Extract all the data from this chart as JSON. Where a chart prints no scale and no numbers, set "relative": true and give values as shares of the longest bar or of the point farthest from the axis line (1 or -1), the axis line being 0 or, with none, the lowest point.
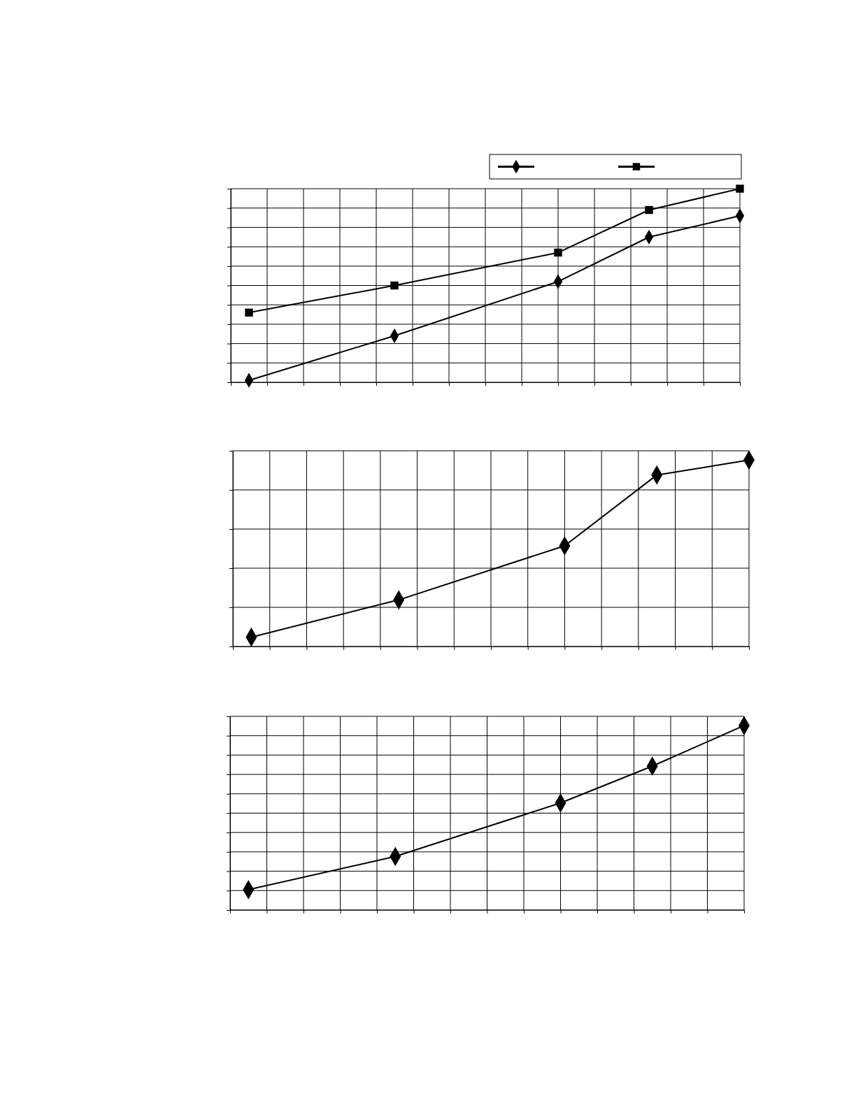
{
  "chart_data": [
    {
      "type": "line",
      "relative": true,
      "grid": true,
      "categories": [
        null,
        null,
        null,
        null,
        null,
        null,
        null,
        null,
        null,
        null,
        null,
        null,
        null,
        null,
        null,
        null,
        null,
        null,
        null,
        null,
        null,
        null,
        null,
        null,
        null,
        null,
        null,
        null,
        null
      ],
      "series": [
        {
          "color": "#000000",
          "marker": "diamond",
          "values": [
            null,
            0.01,
            null,
            null,
            null,
            null,
            null,
            null,
            null,
            0.24,
            null,
            null,
            null,
            null,
            null,
            null,
            null,
            null,
            0.52,
            null,
            null,
            null,
            null,
            0.75,
            null,
            null,
            null,
            null,
            0.86
          ]
        },
        {
          "color": "#000000",
          "marker": "square",
          "values": [
            null,
            0.36,
            null,
            null,
            null,
            null,
            null,
            null,
            null,
            0.5,
            null,
            null,
            null,
            null,
            null,
            null,
            null,
            null,
            0.67,
            null,
            null,
            null,
            null,
            0.89,
            null,
            null,
            null,
            null,
            1.0
          ]
        }
      ]
    },
    {
      "type": "line",
      "relative": true,
      "grid": true,
      "categories": [
        null,
        null,
        null,
        null,
        null,
        null,
        null,
        null,
        null,
        null,
        null,
        null,
        null,
        null,
        null,
        null,
        null,
        null,
        null,
        null,
        null,
        null,
        null,
        null,
        null,
        null,
        null,
        null,
        null
      ],
      "series": [
        {
          "color": "#000000",
          "marker": "diamond",
          "values": [
            null,
            0.05,
            null,
            null,
            null,
            null,
            null,
            null,
            null,
            0.25,
            null,
            null,
            null,
            null,
            null,
            null,
            null,
            null,
            0.54,
            null,
            null,
            null,
            null,
            0.92,
            null,
            null,
            null,
            null,
            1.0
          ]
        }
      ]
    },
    {
      "type": "line",
      "relative": true,
      "grid": true,
      "categories": [
        null,
        null,
        null,
        null,
        null,
        null,
        null,
        null,
        null,
        null,
        null,
        null,
        null,
        null,
        null,
        null,
        null,
        null,
        null,
        null,
        null,
        null,
        null,
        null,
        null,
        null,
        null,
        null,
        null
      ],
      "series": [
        {
          "color": "#000000",
          "marker": "diamond",
          "values": [
            null,
            0.11,
            null,
            null,
            null,
            null,
            null,
            null,
            null,
            0.29,
            null,
            null,
            null,
            null,
            null,
            null,
            null,
            null,
            0.58,
            null,
            null,
            null,
            null,
            0.78,
            null,
            null,
            null,
            null,
            1.0
          ]
        }
      ]
    }
  ]
}
